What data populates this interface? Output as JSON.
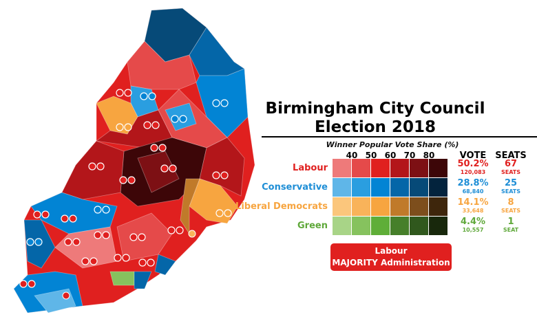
{
  "title": {
    "line1": "Birmingham City Council",
    "line2": "Election 2018"
  },
  "legend": {
    "header": "Winner Popular Vote Share (%)",
    "ticks": [
      "40",
      "50",
      "60",
      "70",
      "80"
    ],
    "vote_header": "VOTE",
    "seats_header": "SEATS",
    "parties": [
      {
        "name": "Labour",
        "color": "#e0201f",
        "vote_pct": "50.2%",
        "votes": "120,083",
        "seats": "67",
        "seats_label": "SEATS",
        "shades": [
          "#ee7a7a",
          "#e54a4a",
          "#e0201f",
          "#b3161a",
          "#7d1014",
          "#3d0608"
        ]
      },
      {
        "name": "Conservative",
        "color": "#1e8ed6",
        "vote_pct": "28.8%",
        "votes": "68,840",
        "seats": "25",
        "seats_label": "SEATS",
        "shades": [
          "#5fb6e8",
          "#2a9ee0",
          "#0284d4",
          "#0466a8",
          "#064a78",
          "#03233d"
        ]
      },
      {
        "name": "Liberal Democrats",
        "color": "#f7a540",
        "vote_pct": "14.1%",
        "votes": "33,648",
        "seats": "8",
        "seats_label": "SEATS",
        "shades": [
          "#fbc67c",
          "#f9b35a",
          "#f7a540",
          "#c07a2a",
          "#7d4e1c",
          "#3e260c"
        ]
      },
      {
        "name": "Green",
        "color": "#5fa83a",
        "vote_pct": "4.4%",
        "votes": "10,557",
        "seats": "1",
        "seats_label": "SEAT",
        "shades": [
          "#a8d487",
          "#86c25e",
          "#5fae38",
          "#467f2a",
          "#30581d",
          "#18280c"
        ]
      }
    ]
  },
  "banner": {
    "line1": "Labour",
    "line2": "MAJORITY Administration"
  }
}
